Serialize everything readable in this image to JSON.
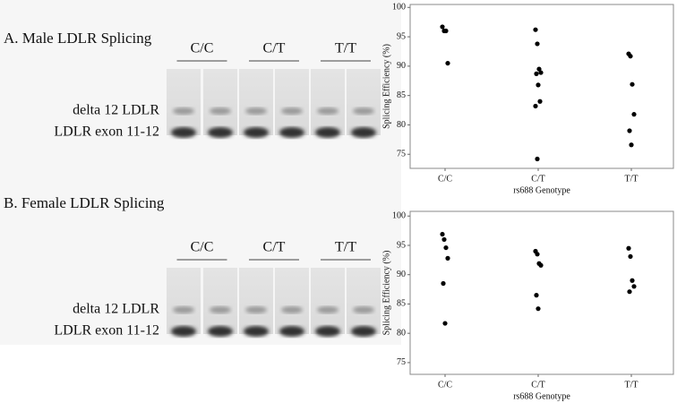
{
  "panels": [
    {
      "title": "A. Male LDLR Splicing",
      "genotypes": [
        "C/C",
        "C/T",
        "T/T"
      ],
      "bands": [
        "delta 12 LDLR",
        "LDLR exon 11-12"
      ]
    },
    {
      "title": "B. Female LDLR Splicing",
      "genotypes": [
        "C/C",
        "C/T",
        "T/T"
      ],
      "bands": [
        "delta 12 LDLR",
        "LDLR exon 11-12"
      ]
    }
  ],
  "chart_data": [
    {
      "type": "scatter",
      "ylabel": "Splicing Efficiency (%)",
      "xlabel": "rs688 Genotype",
      "categories": [
        "C/C",
        "C/T",
        "T/T"
      ],
      "values": [
        [
          96.7,
          96.0,
          96.0,
          90.5
        ],
        [
          96.2,
          93.8,
          89.5,
          88.9,
          88.7,
          86.8,
          84.0,
          83.2,
          74.2
        ],
        [
          92.1,
          91.7,
          86.9,
          81.8,
          79.0,
          76.6
        ]
      ],
      "color": "#000000",
      "ylim": [
        72.6,
        100.5
      ],
      "yticks": [
        75,
        80,
        85,
        90,
        95,
        100
      ]
    },
    {
      "type": "scatter",
      "ylabel": "Splicing Efficiency (%)",
      "xlabel": "rs688 Genotype",
      "categories": [
        "C/C",
        "C/T",
        "T/T"
      ],
      "values": [
        [
          96.9,
          96.0,
          94.6,
          92.8,
          88.5,
          81.7
        ],
        [
          94.0,
          93.5,
          91.9,
          91.6,
          86.5,
          84.2
        ],
        [
          94.5,
          93.1,
          89.0,
          88.0,
          87.1
        ]
      ],
      "color": "#000000",
      "ylim": [
        73.0,
        100.8
      ],
      "yticks": [
        75,
        80,
        85,
        90,
        95,
        100
      ]
    }
  ]
}
